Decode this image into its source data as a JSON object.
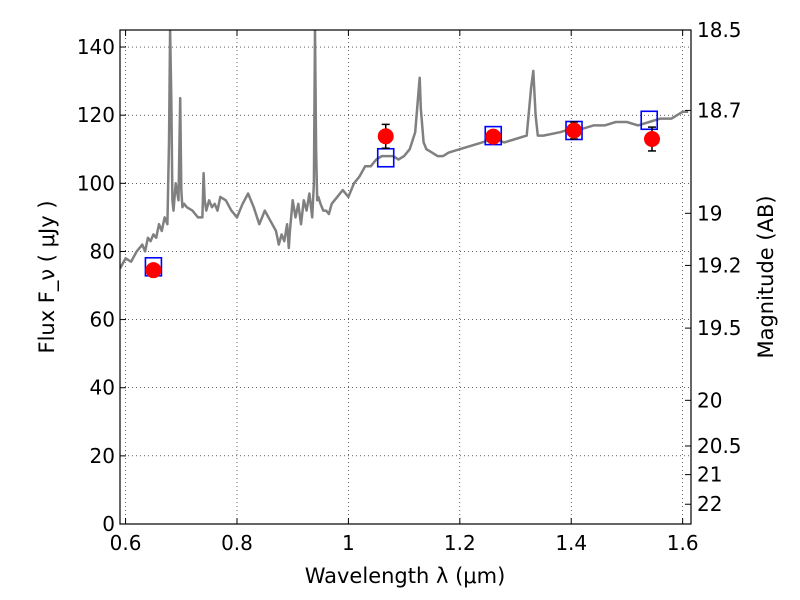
{
  "chart_data": {
    "type": "line",
    "xlabel": "Wavelength  λ (μm)",
    "ylabel": "Flux  F_ν  ( μJy )",
    "y2label": "Magnitude (AB)",
    "xlim": [
      0.59,
      1.615
    ],
    "ylim": [
      0,
      145
    ],
    "x_ticks": [
      0.6,
      0.8,
      1,
      1.2,
      1.4,
      1.6
    ],
    "x_tick_labels": [
      "0.6",
      "0.8",
      "1",
      "1.2",
      "1.4",
      "1.6"
    ],
    "y_ticks": [
      0,
      20,
      40,
      60,
      80,
      100,
      120,
      140
    ],
    "y_tick_labels": [
      "0",
      "20",
      "40",
      "60",
      "80",
      "100",
      "120",
      "140"
    ],
    "mag_ticks": [
      {
        "flux": 145.0,
        "label": "18.5"
      },
      {
        "flux": 121.4,
        "label": "18.7"
      },
      {
        "flux": 91.2,
        "label": "19"
      },
      {
        "flux": 75.9,
        "label": "19.2"
      },
      {
        "flux": 57.5,
        "label": "19.5"
      },
      {
        "flux": 36.3,
        "label": "20"
      },
      {
        "flux": 22.9,
        "label": "20.5"
      },
      {
        "flux": 14.5,
        "label": "21"
      },
      {
        "flux": 5.8,
        "label": "22"
      }
    ],
    "grid": true,
    "colors": {
      "spectrum": "#808080",
      "model": "#0000ff",
      "observed": "#ff0000",
      "error": "#000000"
    },
    "series": [
      {
        "name": "spectrum",
        "style": "line",
        "x": [
          0.59,
          0.6,
          0.61,
          0.62,
          0.63,
          0.635,
          0.64,
          0.645,
          0.65,
          0.655,
          0.66,
          0.665,
          0.67,
          0.675,
          0.678,
          0.68,
          0.682,
          0.684,
          0.686,
          0.69,
          0.695,
          0.698,
          0.7,
          0.702,
          0.705,
          0.71,
          0.72,
          0.73,
          0.738,
          0.74,
          0.742,
          0.745,
          0.75,
          0.755,
          0.76,
          0.765,
          0.77,
          0.78,
          0.79,
          0.8,
          0.81,
          0.82,
          0.83,
          0.84,
          0.845,
          0.85,
          0.86,
          0.87,
          0.875,
          0.88,
          0.885,
          0.89,
          0.893,
          0.895,
          0.9,
          0.905,
          0.91,
          0.915,
          0.92,
          0.925,
          0.93,
          0.935,
          0.938,
          0.94,
          0.942,
          0.944,
          0.946,
          0.95,
          0.955,
          0.96,
          0.965,
          0.97,
          0.975,
          0.98,
          0.985,
          0.99,
          1.0,
          1.01,
          1.02,
          1.03,
          1.04,
          1.05,
          1.06,
          1.07,
          1.08,
          1.09,
          1.1,
          1.11,
          1.12,
          1.125,
          1.128,
          1.13,
          1.135,
          1.14,
          1.15,
          1.16,
          1.17,
          1.18,
          1.2,
          1.22,
          1.24,
          1.26,
          1.28,
          1.3,
          1.32,
          1.328,
          1.332,
          1.336,
          1.34,
          1.35,
          1.38,
          1.4,
          1.42,
          1.44,
          1.46,
          1.48,
          1.5,
          1.52,
          1.54,
          1.56,
          1.58,
          1.6,
          1.61
        ],
        "values": [
          75,
          78,
          77,
          80,
          82,
          80,
          84,
          83,
          85,
          84,
          88,
          86,
          90,
          88,
          112,
          145,
          125,
          95,
          92,
          100,
          95,
          125,
          98,
          93,
          94,
          93,
          92,
          90,
          90,
          103,
          95,
          92,
          95,
          93,
          94,
          92,
          96,
          95,
          92,
          90,
          94,
          97,
          93,
          88,
          90,
          92,
          89,
          86,
          82,
          85,
          83,
          88,
          81,
          86,
          95,
          90,
          94,
          88,
          95,
          92,
          97,
          90,
          100,
          145,
          110,
          95,
          96,
          94,
          92,
          92,
          91,
          94,
          95,
          96,
          97,
          98,
          96,
          100,
          102,
          105,
          105,
          107,
          108,
          108,
          108,
          107,
          108,
          110,
          115,
          125,
          131,
          122,
          112,
          110,
          109,
          108,
          108,
          109,
          110,
          111,
          112,
          113,
          112,
          113,
          114,
          128,
          133,
          120,
          114,
          114,
          115,
          116,
          116,
          117,
          117,
          118,
          118,
          117,
          118,
          119,
          119,
          121,
          121
        ]
      },
      {
        "name": "model_photometry",
        "style": "open-square",
        "x": [
          0.65,
          1.067,
          1.26,
          1.405,
          1.54
        ],
        "values": [
          75.5,
          107.5,
          114.0,
          115.5,
          118.5
        ]
      },
      {
        "name": "observed_photometry",
        "style": "filled-circle",
        "x": [
          0.65,
          1.067,
          1.26,
          1.405,
          1.545
        ],
        "values": [
          74.5,
          113.8,
          113.7,
          115.5,
          113.0
        ],
        "errors": [
          1.5,
          3.5,
          1.5,
          2.5,
          3.5
        ]
      }
    ]
  }
}
